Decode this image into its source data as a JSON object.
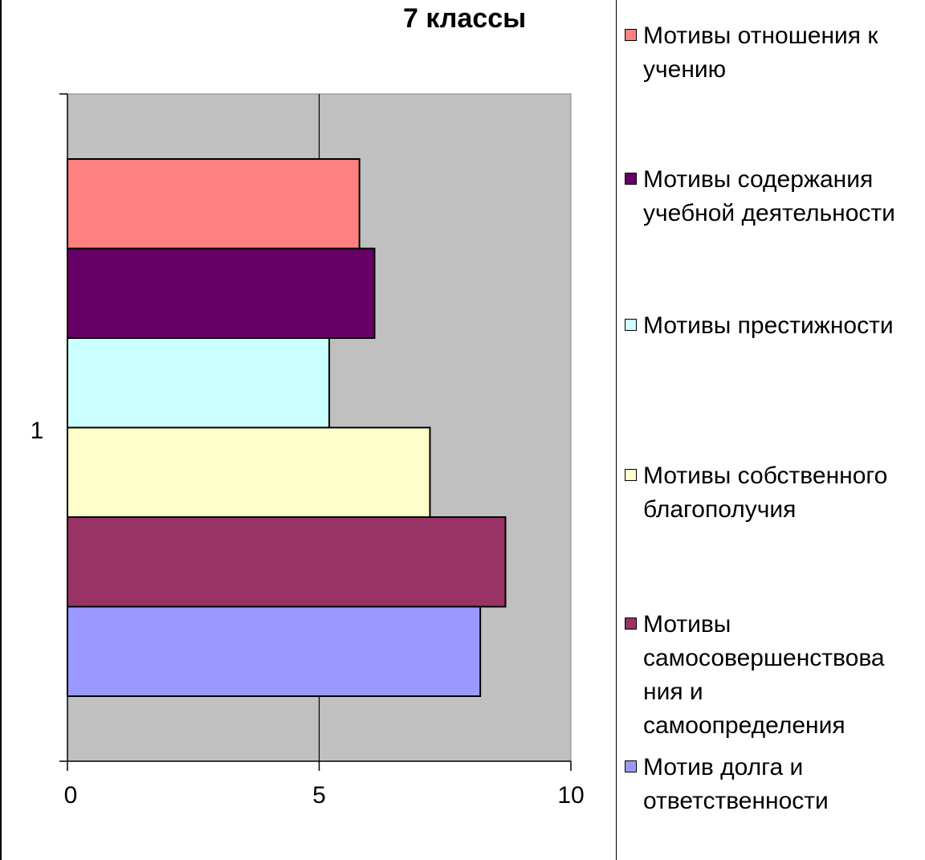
{
  "chart_data": {
    "type": "bar",
    "orientation": "horizontal",
    "title": "7 классы",
    "categories": [
      "1"
    ],
    "xlim": [
      0,
      10
    ],
    "xticks": [
      "0",
      "5",
      "10"
    ],
    "grid": true,
    "legend_position": "right",
    "series": [
      {
        "name": "Мотивы отношения к учению",
        "values": [
          5.8
        ],
        "color": "#FF8080"
      },
      {
        "name": "Мотивы содержания учебной деятельности",
        "values": [
          6.1
        ],
        "color": "#660066"
      },
      {
        "name": "Мотивы престижности",
        "values": [
          5.2
        ],
        "color": "#CCFFFF"
      },
      {
        "name": "Мотивы собственного благополучия",
        "values": [
          7.2
        ],
        "color": "#FFFFCC"
      },
      {
        "name": "Мотивы самосовершенствования и самоопределения",
        "values": [
          8.7
        ],
        "color": "#993366"
      },
      {
        "name": "Мотив долга и ответственности",
        "values": [
          8.2
        ],
        "color": "#9999FF"
      }
    ]
  },
  "legend": {
    "entries": [
      "Мотивы отношения к\nучению",
      "Мотивы содержания\nучебной деятельности",
      "Мотивы престижности",
      "Мотивы собственного\nблагополучия",
      "Мотивы\nсамосовершенствова\nния и\nсамоопределения",
      "Мотив долга и\nответственности"
    ]
  }
}
